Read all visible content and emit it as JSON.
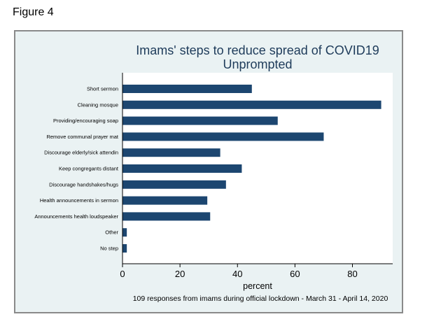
{
  "figure_label": "Figure 4",
  "chart_data": {
    "type": "bar",
    "orientation": "horizontal",
    "title": "Imams' steps to reduce spread of COVID19",
    "subtitle": "Unprompted",
    "categories": [
      "Short sermon",
      "Cleaning mosque",
      "Providing/encouraging soap",
      "Remove communal prayer mat",
      "Discourage elderly/sick attendin",
      "Keep congregants distant",
      "Discourage handshakes/hugs",
      "Health announcements in sermon",
      "Announcements health loudspeaker",
      "Other",
      "No step"
    ],
    "values": [
      45,
      90,
      54,
      70,
      34,
      41.5,
      36,
      29.5,
      30.5,
      1.5,
      1.5
    ],
    "xlabel": "percent",
    "ylabel": "",
    "xlim": [
      0,
      94
    ],
    "xticks": [
      "0",
      "20",
      "40",
      "60",
      "80"
    ],
    "note": "109 responses from imams during official lockdown - March 31 - April 14, 2020",
    "grid": false,
    "bar_color": "#1c4670",
    "plot_background": "#ffffff",
    "outer_background": "#eaf2f3",
    "title_color": "#1e3b5a"
  }
}
